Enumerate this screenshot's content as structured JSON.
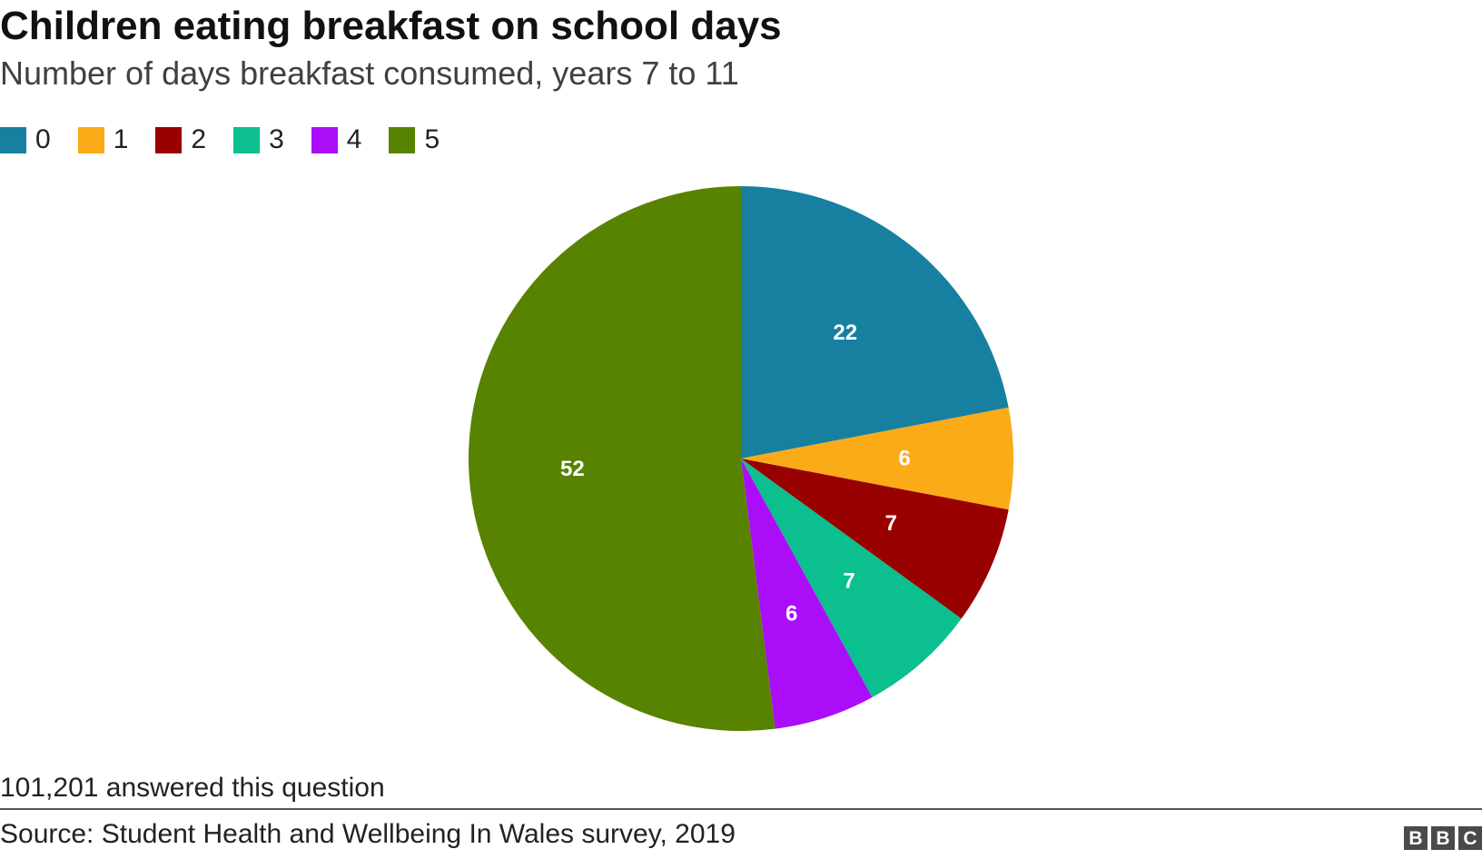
{
  "title": "Children eating breakfast on school days",
  "subtitle": "Number of days breakfast consumed, years 7 to 11",
  "chart_data": {
    "type": "pie",
    "title": "Children eating breakfast on school days",
    "subtitle": "Number of days breakfast consumed, years 7 to 11",
    "legend_position": "top-left",
    "categories": [
      "0",
      "1",
      "2",
      "3",
      "4",
      "5"
    ],
    "values": [
      22,
      6,
      7,
      7,
      6,
      52
    ],
    "colors": [
      "#1780a1",
      "#fbab18",
      "#990000",
      "#0bbf8e",
      "#aa0ef9",
      "#588300"
    ],
    "data_labels": [
      "22",
      "6",
      "7",
      "7",
      "6",
      "52"
    ]
  },
  "footnote": "101,201 answered this question",
  "source": "Source: Student Health and Wellbeing In Wales survey, 2019",
  "logo": {
    "letters": [
      "B",
      "B",
      "C"
    ]
  }
}
